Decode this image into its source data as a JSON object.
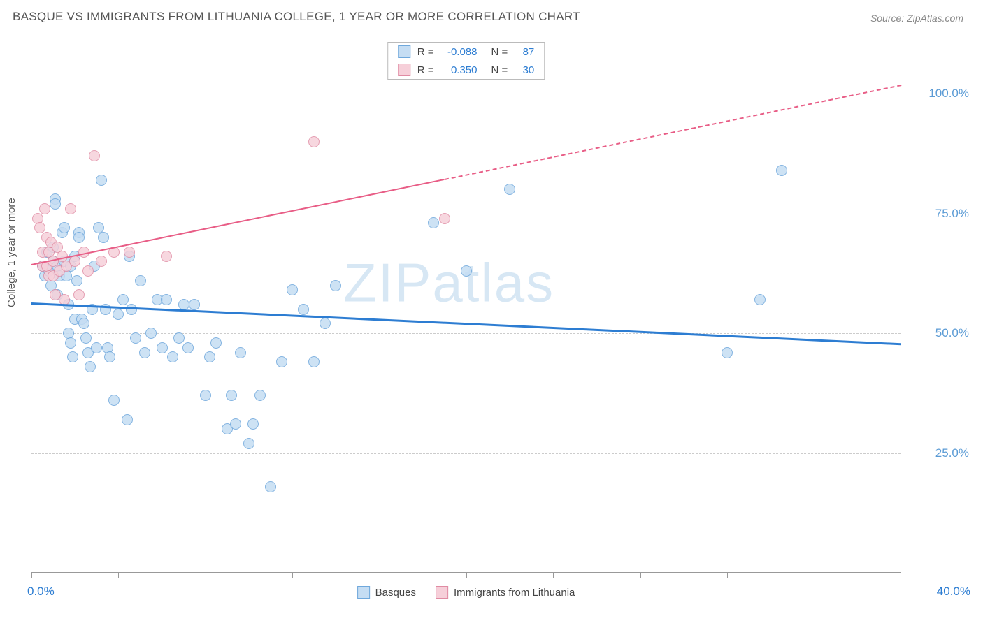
{
  "title": "BASQUE VS IMMIGRANTS FROM LITHUANIA COLLEGE, 1 YEAR OR MORE CORRELATION CHART",
  "source": "Source: ZipAtlas.com",
  "ylabel": "College, 1 year or more",
  "watermark": {
    "text": "ZIPatlas",
    "color": "#b8d4ec",
    "opacity": 0.55
  },
  "xlim": [
    0,
    40
  ],
  "ylim": [
    0,
    112
  ],
  "xlabels": {
    "min": "0.0%",
    "max": "40.0%"
  },
  "ylabels": [
    {
      "v": 25,
      "text": "25.0%"
    },
    {
      "v": 50,
      "text": "50.0%"
    },
    {
      "v": 75,
      "text": "75.0%"
    },
    {
      "v": 100,
      "text": "100.0%"
    }
  ],
  "ylabel_color": "#5b9bd5",
  "x_ticks": [
    0,
    4,
    8,
    12,
    16,
    20,
    24,
    28,
    32,
    36
  ],
  "series": [
    {
      "name": "Basques",
      "marker_fill": "#c5ddf3",
      "marker_stroke": "#6fa8dc",
      "marker_opacity": 0.85,
      "marker_radius": 8,
      "trend": {
        "color": "#2d7dd2",
        "x1": 0,
        "y1": 56.5,
        "x2": 40,
        "y2": 48,
        "width": 3
      },
      "R": "-0.088",
      "N": "87",
      "points": [
        [
          0.5,
          64
        ],
        [
          0.6,
          62
        ],
        [
          0.7,
          67
        ],
        [
          0.8,
          63
        ],
        [
          0.9,
          60
        ],
        [
          1.0,
          65
        ],
        [
          1.0,
          68
        ],
        [
          1.1,
          78
        ],
        [
          1.1,
          77
        ],
        [
          1.2,
          64
        ],
        [
          1.2,
          58
        ],
        [
          1.3,
          62
        ],
        [
          1.4,
          71
        ],
        [
          1.5,
          72
        ],
        [
          1.5,
          65
        ],
        [
          1.6,
          62
        ],
        [
          1.7,
          56
        ],
        [
          1.7,
          50
        ],
        [
          1.8,
          48
        ],
        [
          1.8,
          64
        ],
        [
          1.9,
          45
        ],
        [
          2.0,
          53
        ],
        [
          2.0,
          66
        ],
        [
          2.1,
          61
        ],
        [
          2.2,
          71
        ],
        [
          2.2,
          70
        ],
        [
          2.3,
          53
        ],
        [
          2.4,
          52
        ],
        [
          2.5,
          49
        ],
        [
          2.6,
          46
        ],
        [
          2.7,
          43
        ],
        [
          2.8,
          55
        ],
        [
          2.9,
          64
        ],
        [
          3.0,
          47
        ],
        [
          3.1,
          72
        ],
        [
          3.2,
          82
        ],
        [
          3.3,
          70
        ],
        [
          3.4,
          55
        ],
        [
          3.5,
          47
        ],
        [
          3.6,
          45
        ],
        [
          3.8,
          36
        ],
        [
          4.0,
          54
        ],
        [
          4.2,
          57
        ],
        [
          4.4,
          32
        ],
        [
          4.5,
          66
        ],
        [
          4.6,
          55
        ],
        [
          4.8,
          49
        ],
        [
          5.0,
          61
        ],
        [
          5.2,
          46
        ],
        [
          5.5,
          50
        ],
        [
          5.8,
          57
        ],
        [
          6.0,
          47
        ],
        [
          6.2,
          57
        ],
        [
          6.5,
          45
        ],
        [
          6.8,
          49
        ],
        [
          7.0,
          56
        ],
        [
          7.2,
          47
        ],
        [
          7.5,
          56
        ],
        [
          8.0,
          37
        ],
        [
          8.2,
          45
        ],
        [
          8.5,
          48
        ],
        [
          9.0,
          30
        ],
        [
          9.2,
          37
        ],
        [
          9.4,
          31
        ],
        [
          9.6,
          46
        ],
        [
          10.0,
          27
        ],
        [
          10.2,
          31
        ],
        [
          10.5,
          37
        ],
        [
          11.0,
          18
        ],
        [
          11.5,
          44
        ],
        [
          12.0,
          59
        ],
        [
          12.5,
          55
        ],
        [
          13.0,
          44
        ],
        [
          13.5,
          52
        ],
        [
          14.0,
          60
        ],
        [
          18.5,
          73
        ],
        [
          20.0,
          63
        ],
        [
          22.0,
          80
        ],
        [
          32.0,
          46
        ],
        [
          33.5,
          57
        ],
        [
          34.5,
          84
        ]
      ]
    },
    {
      "name": "Immigrants from Lithuania",
      "marker_fill": "#f6cfd9",
      "marker_stroke": "#e08ba3",
      "marker_opacity": 0.82,
      "marker_radius": 8,
      "trend": {
        "color": "#e85d86",
        "x1": 0,
        "y1": 64.5,
        "x2": 40,
        "y2": 102,
        "solid_until_x": 19,
        "width": 2
      },
      "R": "0.350",
      "N": "30",
      "points": [
        [
          0.3,
          74
        ],
        [
          0.4,
          72
        ],
        [
          0.5,
          67
        ],
        [
          0.5,
          64
        ],
        [
          0.6,
          76
        ],
        [
          0.7,
          70
        ],
        [
          0.7,
          64
        ],
        [
          0.8,
          62
        ],
        [
          0.8,
          67
        ],
        [
          0.9,
          69
        ],
        [
          1.0,
          65
        ],
        [
          1.0,
          62
        ],
        [
          1.1,
          58
        ],
        [
          1.2,
          68
        ],
        [
          1.3,
          63
        ],
        [
          1.4,
          66
        ],
        [
          1.5,
          57
        ],
        [
          1.6,
          64
        ],
        [
          1.8,
          76
        ],
        [
          2.0,
          65
        ],
        [
          2.2,
          58
        ],
        [
          2.4,
          67
        ],
        [
          2.6,
          63
        ],
        [
          2.9,
          87
        ],
        [
          3.2,
          65
        ],
        [
          3.8,
          67
        ],
        [
          4.5,
          67
        ],
        [
          6.2,
          66
        ],
        [
          13.0,
          90
        ],
        [
          19.0,
          74
        ]
      ]
    }
  ],
  "legend_bottom": [
    "Basques",
    "Immigrants from Lithuania"
  ]
}
